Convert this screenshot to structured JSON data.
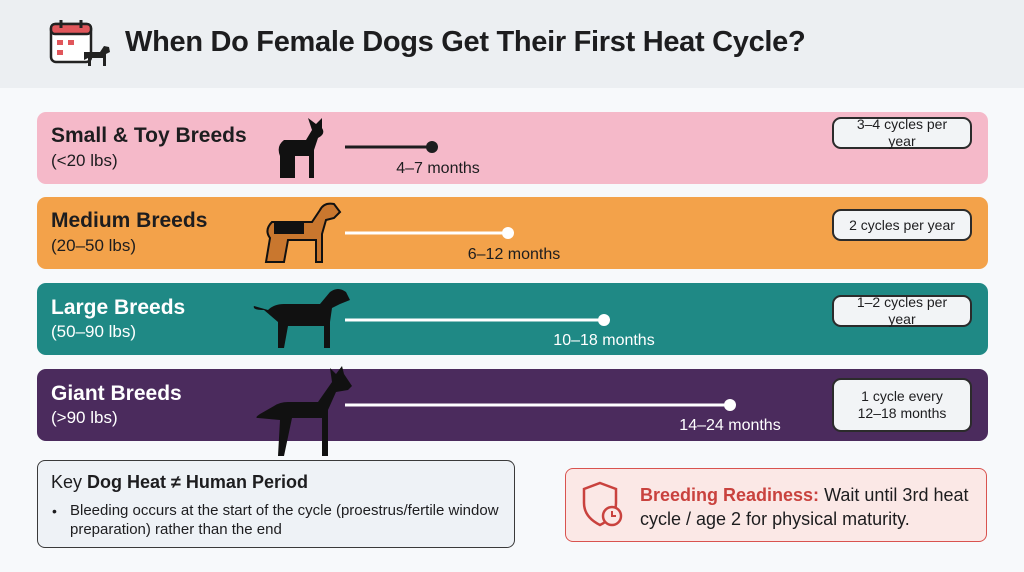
{
  "header": {
    "title": "When Do Female Dogs Get Their First Heat Cycle?"
  },
  "rows": [
    {
      "name": "Small & Toy Breeds",
      "weight": "(<20 lbs)",
      "age": "4–7 months",
      "cycles": "3–4 cycles per year"
    },
    {
      "name": "Medium Breeds",
      "weight": "(20–50 lbs)",
      "age": "6–12 months",
      "cycles": "2 cycles per year"
    },
    {
      "name": "Large Breeds",
      "weight": "(50–90 lbs)",
      "age": "10–18 months",
      "cycles": "1–2 cycles per year"
    },
    {
      "name": "Giant Breeds",
      "weight": "(>90 lbs)",
      "age": "14–24 months",
      "cycles": "1 cycle every 12–18 months"
    }
  ],
  "key": {
    "label": "Key",
    "title": "Dog Heat ≠ Human Period",
    "bullet": "Bleeding occurs at the start of the cycle (proestrus/fertile window preparation) rather than the end"
  },
  "breeding": {
    "label": "Breeding Readiness:",
    "text": "Wait until 3rd heat cycle / age 2 for physical maturity."
  }
}
